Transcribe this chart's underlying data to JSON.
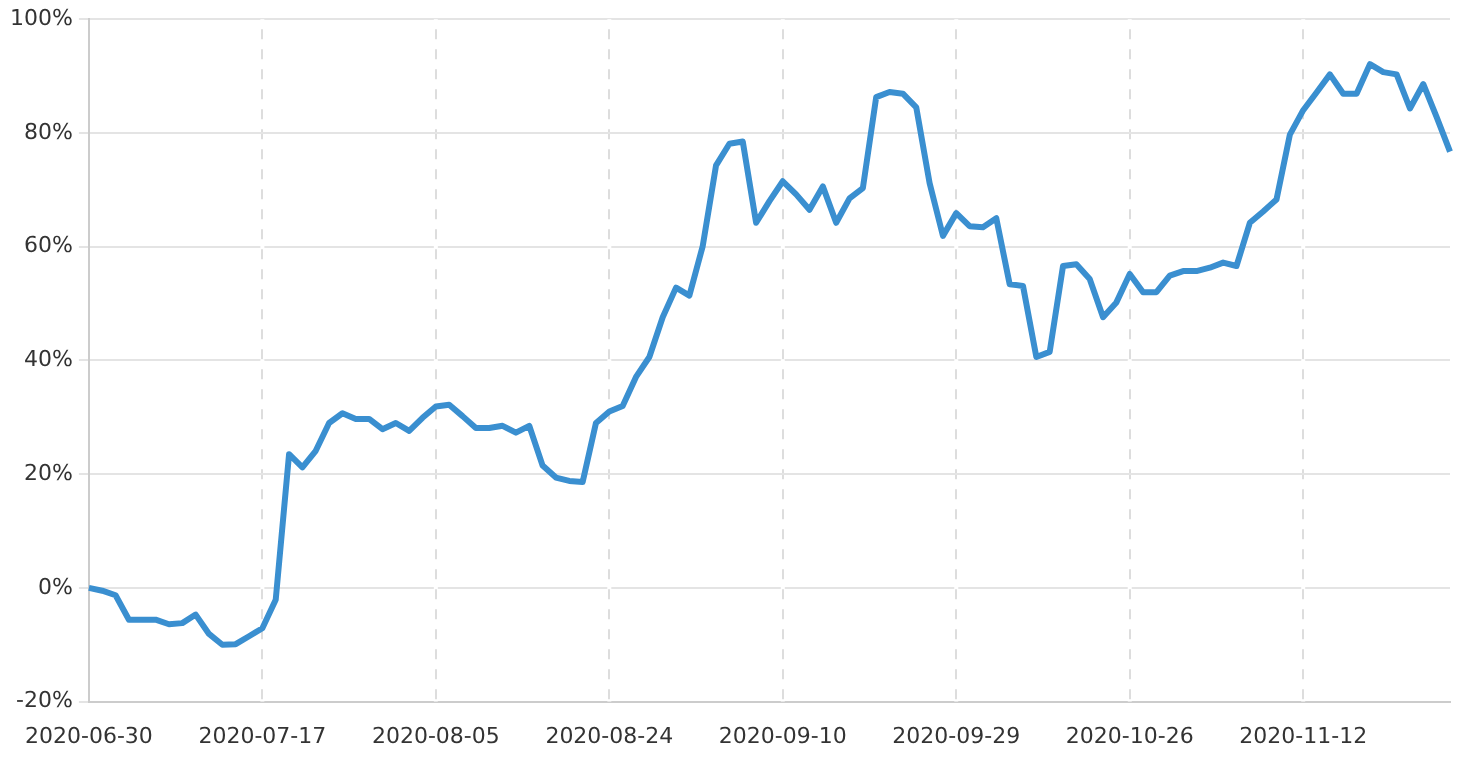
{
  "chart_data": {
    "type": "line",
    "categories": [
      "2020-06-30",
      null,
      null,
      null,
      null,
      null,
      null,
      null,
      null,
      null,
      null,
      null,
      null,
      "2020-07-17",
      null,
      null,
      null,
      null,
      null,
      null,
      null,
      null,
      null,
      null,
      null,
      null,
      "2020-08-05",
      null,
      null,
      null,
      null,
      null,
      null,
      null,
      null,
      null,
      null,
      null,
      null,
      "2020-08-24",
      null,
      null,
      null,
      null,
      null,
      null,
      null,
      null,
      null,
      null,
      null,
      null,
      "2020-09-10",
      null,
      null,
      null,
      null,
      null,
      null,
      null,
      null,
      null,
      null,
      null,
      null,
      "2020-09-29",
      null,
      null,
      null,
      null,
      null,
      null,
      null,
      null,
      null,
      null,
      null,
      null,
      "2020-10-26",
      null,
      null,
      null,
      null,
      null,
      null,
      null,
      null,
      null,
      null,
      null,
      null,
      "2020-11-12",
      null,
      null,
      null,
      null,
      null,
      null,
      null,
      null,
      null,
      null,
      null
    ],
    "series": [
      {
        "color": "#3a8fd0",
        "values": [
          0,
          -0.5,
          -1.3,
          -5.6,
          -5.6,
          -5.6,
          -6.4,
          -6.2,
          -4.7,
          -8.1,
          -10,
          -9.9,
          -8.5,
          -7.1,
          -2.1,
          23.5,
          21.2,
          24.1,
          29,
          30.7,
          29.7,
          29.7,
          27.9,
          29,
          27.6,
          29.9,
          31.9,
          32.2,
          30.2,
          28.1,
          28.1,
          28.5,
          27.3,
          28.5,
          21.5,
          19.4,
          18.8,
          18.6,
          29,
          31,
          32,
          37.1,
          40.6,
          47.6,
          52.8,
          51.4,
          60.1,
          74.3,
          78.1,
          78.5,
          64.2,
          68,
          71.5,
          69.2,
          66.5,
          70.6,
          64.2,
          68.5,
          70.3,
          86.3,
          87.2,
          86.9,
          84.5,
          71.2,
          61.9,
          65.9,
          63.6,
          63.4,
          65,
          53.4,
          53.1,
          40.6,
          41.5,
          56.6,
          56.9,
          54.3,
          47.6,
          50.2,
          55.2,
          52,
          52,
          54.9,
          55.7,
          55.7,
          56.3,
          57.2,
          56.6,
          64.2,
          66.2,
          68.3,
          79.7,
          84,
          87.1,
          90.3,
          86.9,
          86.9,
          92.1,
          90.7,
          90.3,
          84.3,
          88.6,
          82.8,
          76.7
        ]
      }
    ],
    "ylim": [
      -20,
      100
    ],
    "yticks": [
      {
        "value": -20,
        "label": "-20%"
      },
      {
        "value": 0,
        "label": "0%"
      },
      {
        "value": 20,
        "label": "20%"
      },
      {
        "value": 40,
        "label": "40%"
      },
      {
        "value": 60,
        "label": "60%"
      },
      {
        "value": 80,
        "label": "80%"
      },
      {
        "value": 100,
        "label": "100%"
      }
    ],
    "grid": true,
    "legend": false,
    "marker": "none",
    "line_style": "solid"
  }
}
